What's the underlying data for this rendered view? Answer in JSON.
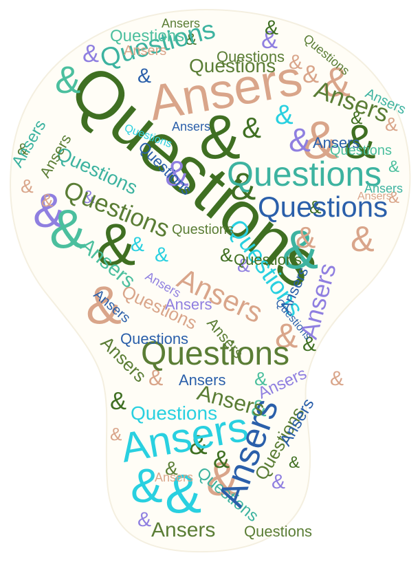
{
  "words": {
    "questions": "Questions",
    "ansers": "Ansers",
    "ampersand": "&"
  },
  "palette": {
    "dark_green": "#3f6f22",
    "olive": "#5a7d35",
    "teal": "#3db3a0",
    "sea_green": "#4bbf9e",
    "blue": "#2a5faa",
    "cyan": "#29d0e0",
    "purple": "#8f7fe0",
    "salmon": "#d9a58a",
    "background": "#ffffff",
    "bulb_fill": "#fffdf6"
  },
  "layout_note_shape": "light-bulb"
}
